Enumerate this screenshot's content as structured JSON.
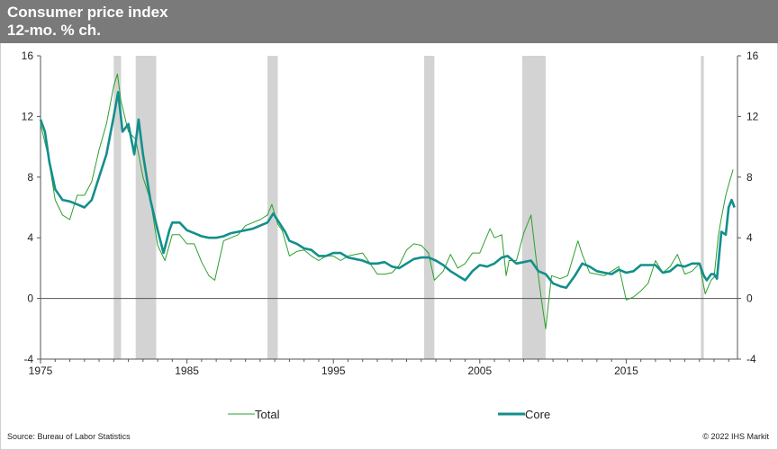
{
  "chart_data": {
    "type": "line",
    "title": "Consumer price index",
    "subtitle": "12-mo. % ch.",
    "ylim": [
      -4,
      16
    ],
    "xlim": [
      1975,
      2022.6
    ],
    "y_ticks": [
      -4,
      0,
      4,
      8,
      12,
      16
    ],
    "x_ticks": [
      1975,
      1985,
      1995,
      2005,
      2015
    ],
    "recessions": [
      [
        1980.0,
        1980.5
      ],
      [
        1981.5,
        1982.9
      ],
      [
        1990.5,
        1991.2
      ],
      [
        2001.2,
        2001.9
      ],
      [
        2007.9,
        2009.5
      ],
      [
        2020.1,
        2020.3
      ]
    ],
    "series": [
      {
        "name": "Total",
        "color": "#2ca02c",
        "x": [
          1975.0,
          1975.5,
          1976.0,
          1976.5,
          1977.0,
          1977.5,
          1978.0,
          1978.5,
          1979.0,
          1979.5,
          1980.0,
          1980.25,
          1980.5,
          1981.0,
          1981.5,
          1982.0,
          1982.5,
          1983.0,
          1983.5,
          1984.0,
          1984.5,
          1985.0,
          1985.5,
          1986.0,
          1986.5,
          1986.9,
          1987.5,
          1988.0,
          1988.5,
          1989.0,
          1989.5,
          1990.0,
          1990.5,
          1990.8,
          1991.2,
          1991.5,
          1992.0,
          1992.5,
          1993.0,
          1993.5,
          1994.0,
          1994.5,
          1995.0,
          1995.5,
          1996.0,
          1996.5,
          1997.0,
          1997.5,
          1998.0,
          1998.5,
          1999.0,
          1999.5,
          2000.0,
          2000.5,
          2001.0,
          2001.5,
          2001.9,
          2002.5,
          2003.0,
          2003.5,
          2004.0,
          2004.5,
          2005.0,
          2005.7,
          2006.0,
          2006.5,
          2006.8,
          2007.0,
          2007.5,
          2008.0,
          2008.5,
          2008.8,
          2009.2,
          2009.5,
          2009.9,
          2010.5,
          2011.0,
          2011.7,
          2012.0,
          2012.5,
          2013.0,
          2013.5,
          2014.0,
          2014.5,
          2015.0,
          2015.5,
          2016.0,
          2016.5,
          2017.0,
          2017.5,
          2018.0,
          2018.5,
          2019.0,
          2019.5,
          2020.0,
          2020.4,
          2020.8,
          2021.0,
          2021.3,
          2021.5,
          2021.8,
          2022.0,
          2022.3
        ],
        "values": [
          11.5,
          9.5,
          6.5,
          5.5,
          5.2,
          6.8,
          6.8,
          7.7,
          9.8,
          11.5,
          14.0,
          14.8,
          13.0,
          11.0,
          10.5,
          8.0,
          6.5,
          3.5,
          2.5,
          4.2,
          4.2,
          3.6,
          3.6,
          2.4,
          1.5,
          1.2,
          3.8,
          4.0,
          4.2,
          4.8,
          5.0,
          5.2,
          5.5,
          6.2,
          4.9,
          4.5,
          2.8,
          3.1,
          3.2,
          2.8,
          2.5,
          2.8,
          2.8,
          2.5,
          2.8,
          2.9,
          3.0,
          2.3,
          1.6,
          1.6,
          1.7,
          2.2,
          3.2,
          3.6,
          3.5,
          3.0,
          1.2,
          1.8,
          2.9,
          2.0,
          2.3,
          3.0,
          3.0,
          4.6,
          4.0,
          4.2,
          1.5,
          2.5,
          2.5,
          4.3,
          5.5,
          3.0,
          0.0,
          -2.0,
          1.5,
          1.3,
          1.5,
          3.8,
          2.9,
          1.7,
          1.6,
          1.5,
          1.8,
          2.1,
          -0.1,
          0.1,
          0.5,
          1.0,
          2.5,
          1.7,
          2.1,
          2.9,
          1.6,
          1.8,
          2.3,
          0.3,
          1.2,
          1.4,
          4.2,
          5.3,
          6.8,
          7.5,
          8.5
        ]
      },
      {
        "name": "Core",
        "color": "#138f8c",
        "x": [
          1975.0,
          1975.3,
          1975.6,
          1976.0,
          1976.5,
          1977.0,
          1977.5,
          1978.0,
          1978.5,
          1979.0,
          1979.5,
          1980.0,
          1980.3,
          1980.6,
          1981.0,
          1981.4,
          1981.7,
          1982.0,
          1982.5,
          1983.0,
          1983.4,
          1983.8,
          1984.0,
          1984.5,
          1985.0,
          1985.5,
          1986.0,
          1986.5,
          1987.0,
          1987.5,
          1988.0,
          1988.5,
          1989.0,
          1989.5,
          1990.0,
          1990.5,
          1990.9,
          1991.3,
          1991.7,
          1992.0,
          1992.5,
          1993.0,
          1993.5,
          1994.0,
          1994.5,
          1995.0,
          1995.5,
          1996.0,
          1996.5,
          1997.0,
          1997.5,
          1998.0,
          1998.5,
          1999.0,
          1999.5,
          2000.0,
          2000.5,
          2001.0,
          2001.5,
          2002.0,
          2002.5,
          2003.0,
          2003.5,
          2004.0,
          2004.5,
          2005.0,
          2005.5,
          2006.0,
          2006.5,
          2006.9,
          2007.5,
          2008.0,
          2008.5,
          2009.0,
          2009.5,
          2010.0,
          2010.5,
          2010.9,
          2011.5,
          2012.0,
          2012.5,
          2013.0,
          2013.5,
          2014.0,
          2014.5,
          2015.0,
          2015.5,
          2016.0,
          2016.5,
          2017.0,
          2017.5,
          2018.0,
          2018.5,
          2019.0,
          2019.5,
          2020.0,
          2020.3,
          2020.5,
          2020.8,
          2021.0,
          2021.2,
          2021.5,
          2021.8,
          2022.0,
          2022.2,
          2022.4
        ],
        "values": [
          11.8,
          11.0,
          9.0,
          7.2,
          6.5,
          6.4,
          6.2,
          6.0,
          6.5,
          8.0,
          9.5,
          12.0,
          13.6,
          11.0,
          11.5,
          9.5,
          11.8,
          9.5,
          6.5,
          4.5,
          3.0,
          4.5,
          5.0,
          5.0,
          4.5,
          4.3,
          4.1,
          4.0,
          4.0,
          4.1,
          4.3,
          4.4,
          4.5,
          4.6,
          4.8,
          5.0,
          5.6,
          5.0,
          4.4,
          3.8,
          3.6,
          3.3,
          3.2,
          2.8,
          2.8,
          3.0,
          3.0,
          2.7,
          2.6,
          2.5,
          2.3,
          2.3,
          2.4,
          2.1,
          2.0,
          2.3,
          2.6,
          2.7,
          2.7,
          2.5,
          2.2,
          1.8,
          1.5,
          1.2,
          1.8,
          2.2,
          2.1,
          2.3,
          2.7,
          2.8,
          2.3,
          2.4,
          2.5,
          1.8,
          1.6,
          1.0,
          0.8,
          0.7,
          1.5,
          2.3,
          2.1,
          1.8,
          1.7,
          1.6,
          1.9,
          1.7,
          1.8,
          2.2,
          2.2,
          2.2,
          1.7,
          1.8,
          2.2,
          2.1,
          2.3,
          2.3,
          1.5,
          1.2,
          1.6,
          1.6,
          1.3,
          4.4,
          4.2,
          6.0,
          6.5,
          6.0
        ]
      }
    ]
  },
  "source": "Source: Bureau of Labor Statistics",
  "copyright": "© 2022  IHS Markit"
}
